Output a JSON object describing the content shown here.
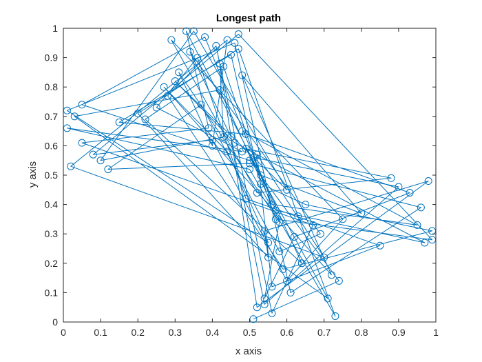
{
  "chart_data": {
    "type": "line",
    "title": "Longest path",
    "xlabel": "x axis",
    "ylabel": "y axis",
    "xlim": [
      0,
      1
    ],
    "ylim": [
      0,
      1
    ],
    "xticks": [
      "0",
      "0.1",
      "0.2",
      "0.3",
      "0.4",
      "0.5",
      "0.6",
      "0.7",
      "0.8",
      "0.9",
      "1"
    ],
    "yticks": [
      "0",
      "0.1",
      "0.2",
      "0.3",
      "0.4",
      "0.5",
      "0.6",
      "0.7",
      "0.8",
      "0.9",
      "1"
    ],
    "grid": false,
    "legend": "none",
    "marker": "circle",
    "color": "#0072BD",
    "series": [
      {
        "x": [
          0.51,
          0.74,
          0.5,
          0.05,
          0.38,
          0.57,
          0.97,
          0.46,
          0.3,
          0.6,
          0.35,
          0.1,
          0.43,
          0.42,
          0.52,
          0.98,
          0.54,
          0.55,
          0.2,
          0.47,
          0.63,
          0.73,
          0.5,
          0.01,
          0.48,
          0.25,
          0.36,
          0.49,
          0.85,
          0.56,
          0.52,
          0.7,
          0.02,
          0.44,
          0.4,
          0.31,
          0.58,
          0.54,
          0.62,
          0.93,
          0.49,
          0.15,
          0.45,
          0.53,
          0.65,
          0.99,
          0.59,
          0.28,
          0.41,
          0.56,
          0.67,
          0.05,
          0.39,
          0.33,
          0.53,
          0.8,
          0.48,
          0.72,
          0.27,
          0.44,
          0.55,
          0.01,
          0.46,
          0.61,
          0.96,
          0.5,
          0.12,
          0.37,
          0.58,
          0.69,
          0.34,
          0.45,
          0.54,
          0.9,
          0.51,
          0.64,
          0.22,
          0.43,
          0.57,
          0.99,
          0.47,
          0.08,
          0.4,
          0.6,
          0.75,
          0.29,
          0.52,
          0.88,
          0.49,
          0.71,
          0.03,
          0.42,
          0.56,
          0.95,
          0.48
        ],
        "y": [
          0.01,
          0.14,
          0.55,
          0.74,
          0.97,
          0.38,
          0.27,
          0.61,
          0.82,
          0.45,
          0.99,
          0.55,
          0.63,
          0.88,
          0.05,
          0.48,
          0.31,
          0.22,
          0.71,
          0.93,
          0.36,
          0.02,
          0.52,
          0.66,
          0.58,
          0.73,
          0.9,
          0.42,
          0.26,
          0.12,
          0.57,
          0.22,
          0.53,
          0.96,
          0.6,
          0.85,
          0.34,
          0.08,
          0.29,
          0.44,
          0.64,
          0.68,
          0.91,
          0.47,
          0.4,
          0.31,
          0.18,
          0.77,
          0.94,
          0.03,
          0.33,
          0.61,
          0.66,
          0.99,
          0.5,
          0.37,
          0.84,
          0.16,
          0.8,
          0.58,
          0.27,
          0.72,
          0.95,
          0.1,
          0.39,
          0.54,
          0.52,
          0.74,
          0.24,
          0.3,
          0.92,
          0.63,
          0.06,
          0.46,
          0.56,
          0.2,
          0.69,
          0.87,
          0.35,
          0.28,
          0.98,
          0.57,
          0.62,
          0.14,
          0.35,
          0.96,
          0.44,
          0.49,
          0.59,
          0.08,
          0.7,
          0.79,
          0.4,
          0.33,
          0.65
        ]
      }
    ]
  }
}
